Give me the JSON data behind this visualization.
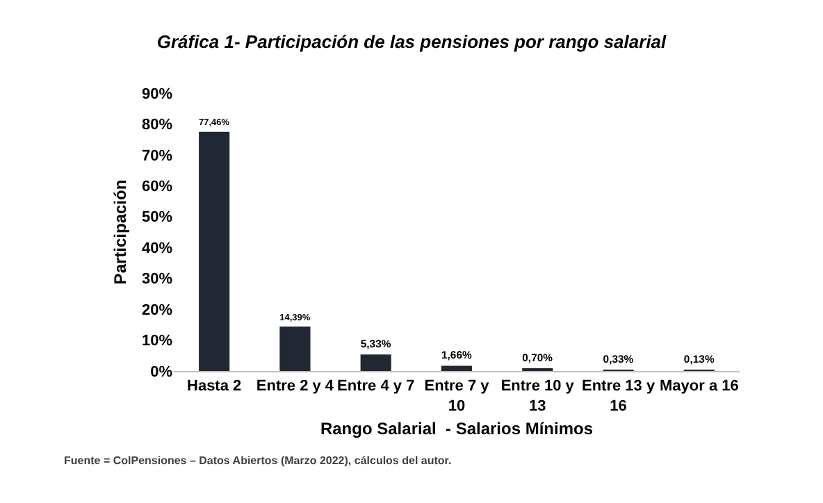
{
  "chart_data": {
    "type": "bar",
    "title": "Gráfica 1- Participación de las pensiones por rango salarial",
    "xlabel": "Rango Salarial  - Salarios Mínimos",
    "ylabel": "Participación",
    "categories": [
      "Hasta 2",
      "Entre 2 y 4",
      "Entre 4 y 7",
      "Entre 7 y 10",
      "Entre 10 y 13",
      "Entre 13 y 16",
      "Mayor a 16"
    ],
    "values": [
      77.46,
      14.39,
      5.33,
      1.66,
      0.7,
      0.33,
      0.13
    ],
    "value_labels": [
      "77,46%",
      "14,39%",
      "5,33%",
      "1,66%",
      "0,70%",
      "0,33%",
      "0,13%"
    ],
    "color": "#222833",
    "ylim": [
      0,
      90
    ],
    "yticks": [
      {
        "value": 0,
        "label": "0%"
      },
      {
        "value": 10,
        "label": "10%"
      },
      {
        "value": 20,
        "label": "20%"
      },
      {
        "value": 30,
        "label": "30%"
      },
      {
        "value": 40,
        "label": "40%"
      },
      {
        "value": 50,
        "label": "50%"
      },
      {
        "value": 60,
        "label": "60%"
      },
      {
        "value": 70,
        "label": "70%"
      },
      {
        "value": 80,
        "label": "80%"
      },
      {
        "value": 90,
        "label": "90%"
      }
    ],
    "annotations": [
      "Fuente = ColPensiones – Datos Abiertos (Marzo 2022), cálculos del autor."
    ]
  }
}
